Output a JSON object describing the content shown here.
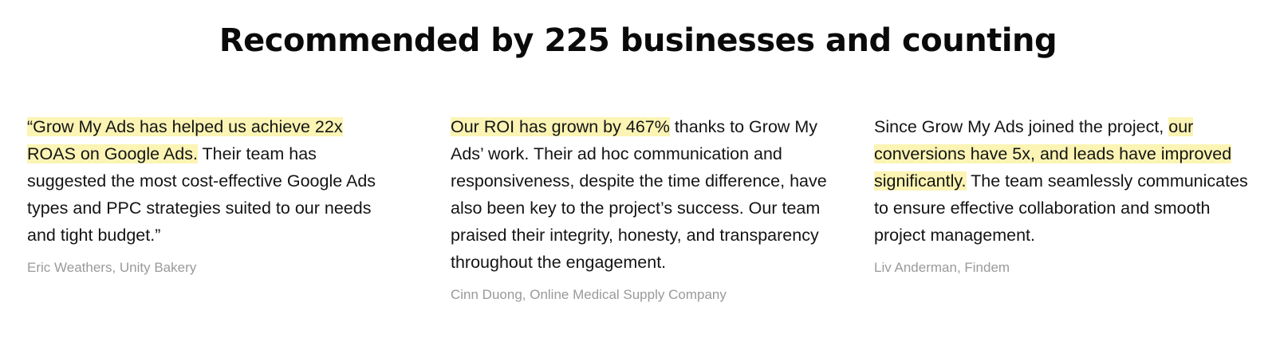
{
  "heading": "Recommended by 225 businesses and counting",
  "testimonials": [
    {
      "highlight_before": "",
      "highlight": "“Grow My Ads has helped us achieve 22x ROAS on Google Ads.",
      "text_after": " Their team has suggested the most cost-effective Google Ads types and PPC strategies suited to our needs and tight budget.”",
      "author": "Eric Weathers, Unity Bakery"
    },
    {
      "highlight_before": "",
      "highlight": "Our ROI has grown by 467%",
      "text_after": " thanks to Grow My Ads’ work. Their ad hoc communication and responsiveness, despite the time difference, have also been key to the project’s success. Our team praised their integrity, honesty, and transparency throughout the engagement.",
      "author": "Cinn Duong, Online Medical Supply Company"
    },
    {
      "highlight_before": "Since Grow My Ads joined the project, ",
      "highlight": "our conversions have 5x, and leads have improved significantly.",
      "text_after": " The team seamlessly communicates to ensure effective collaboration and smooth project management.",
      "author": "Liv Anderman, Findem"
    }
  ],
  "colors": {
    "highlight": "#fbf4b4",
    "author": "#9a9a9a",
    "text": "#141414"
  }
}
